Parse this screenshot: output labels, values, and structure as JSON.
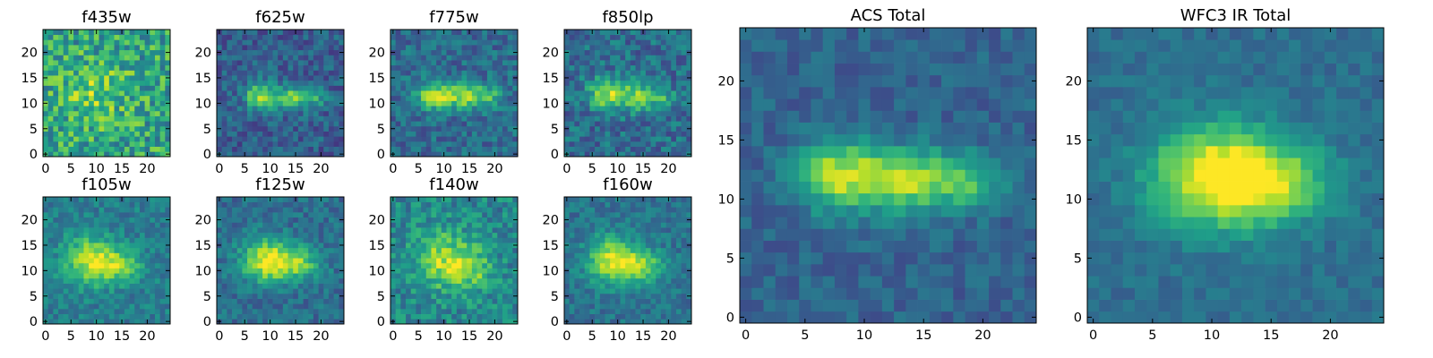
{
  "figure": {
    "colormap": "viridis",
    "colormap_stops": [
      "#440154",
      "#482878",
      "#3e4989",
      "#31688e",
      "#26828e",
      "#1f9e89",
      "#35b779",
      "#6ece58",
      "#b5de2b",
      "#fde725"
    ]
  },
  "chart_data": [
    {
      "type": "heatmap",
      "title": "f435w",
      "grid_size": 25,
      "xlim": [
        0,
        24
      ],
      "ylim": [
        0,
        24
      ],
      "xticks": [
        "0",
        "5",
        "10",
        "15",
        "20"
      ],
      "yticks": [
        "0",
        "5",
        "10",
        "15",
        "20"
      ],
      "source": {
        "amp": 0.2,
        "noise": 0.24,
        "floor": 0.58,
        "blobs": [
          [
            10,
            12,
            4.5,
            4.0,
            1.0
          ]
        ]
      }
    },
    {
      "type": "heatmap",
      "title": "f625w",
      "grid_size": 25,
      "xlim": [
        0,
        24
      ],
      "ylim": [
        0,
        24
      ],
      "xticks": [
        "0",
        "5",
        "10",
        "15",
        "20"
      ],
      "yticks": [
        "0",
        "5",
        "10",
        "15",
        "20"
      ],
      "source": {
        "amp": 0.55,
        "noise": 0.14,
        "floor": 0.3,
        "blobs": [
          [
            8,
            11.5,
            2.2,
            1.8,
            1.0
          ],
          [
            14,
            11,
            2.2,
            1.6,
            0.85
          ],
          [
            19,
            11,
            1.8,
            1.4,
            0.5
          ]
        ]
      }
    },
    {
      "type": "heatmap",
      "title": "f775w",
      "grid_size": 25,
      "xlim": [
        0,
        24
      ],
      "ylim": [
        0,
        24
      ],
      "xticks": [
        "0",
        "5",
        "10",
        "15",
        "20"
      ],
      "yticks": [
        "0",
        "5",
        "10",
        "15",
        "20"
      ],
      "source": {
        "amp": 0.55,
        "noise": 0.14,
        "floor": 0.35,
        "blobs": [
          [
            8,
            11.5,
            2.4,
            1.9,
            1.0
          ],
          [
            14,
            11.5,
            2.4,
            1.8,
            0.9
          ],
          [
            19,
            11.5,
            1.9,
            1.5,
            0.55
          ]
        ]
      }
    },
    {
      "type": "heatmap",
      "title": "f850lp",
      "grid_size": 25,
      "xlim": [
        0,
        24
      ],
      "ylim": [
        0,
        24
      ],
      "xticks": [
        "0",
        "5",
        "10",
        "15",
        "20"
      ],
      "yticks": [
        "0",
        "5",
        "10",
        "15",
        "20"
      ],
      "source": {
        "amp": 0.5,
        "noise": 0.16,
        "floor": 0.36,
        "blobs": [
          [
            8,
            12,
            2.6,
            2.2,
            1.0
          ],
          [
            14,
            11,
            2.4,
            2.0,
            0.8
          ],
          [
            19,
            11,
            1.8,
            1.4,
            0.5
          ]
        ]
      }
    },
    {
      "type": "heatmap",
      "title": "f105w",
      "grid_size": 25,
      "xlim": [
        0,
        24
      ],
      "ylim": [
        0,
        24
      ],
      "xticks": [
        "0",
        "5",
        "10",
        "15",
        "20"
      ],
      "yticks": [
        "0",
        "5",
        "10",
        "15",
        "20"
      ],
      "source": {
        "amp": 0.5,
        "noise": 0.12,
        "floor": 0.42,
        "blobs": [
          [
            9,
            12,
            3.6,
            3.3,
            1.0
          ],
          [
            15,
            11,
            3.0,
            2.2,
            0.6
          ]
        ]
      }
    },
    {
      "type": "heatmap",
      "title": "f125w",
      "grid_size": 25,
      "xlim": [
        0,
        24
      ],
      "ylim": [
        0,
        24
      ],
      "xticks": [
        "0",
        "5",
        "10",
        "15",
        "20"
      ],
      "yticks": [
        "0",
        "5",
        "10",
        "15",
        "20"
      ],
      "source": {
        "amp": 0.55,
        "noise": 0.12,
        "floor": 0.36,
        "blobs": [
          [
            9,
            12,
            3.4,
            3.0,
            1.0
          ],
          [
            15,
            11.5,
            3.4,
            2.4,
            0.75
          ]
        ]
      }
    },
    {
      "type": "heatmap",
      "title": "f140w",
      "grid_size": 25,
      "xlim": [
        0,
        24
      ],
      "ylim": [
        0,
        24
      ],
      "xticks": [
        "0",
        "5",
        "10",
        "15",
        "20"
      ],
      "yticks": [
        "0",
        "5",
        "10",
        "15",
        "20"
      ],
      "source": {
        "amp": 0.4,
        "noise": 0.16,
        "floor": 0.45,
        "blobs": [
          [
            10,
            12,
            4.0,
            4.0,
            1.0
          ],
          [
            16,
            10,
            3.0,
            3.0,
            0.6
          ]
        ]
      }
    },
    {
      "type": "heatmap",
      "title": "f160w",
      "grid_size": 25,
      "xlim": [
        0,
        24
      ],
      "ylim": [
        0,
        24
      ],
      "xticks": [
        "0",
        "5",
        "10",
        "15",
        "20"
      ],
      "yticks": [
        "0",
        "5",
        "10",
        "15",
        "20"
      ],
      "source": {
        "amp": 0.55,
        "noise": 0.11,
        "floor": 0.38,
        "blobs": [
          [
            9,
            12,
            3.4,
            3.2,
            1.0
          ],
          [
            15,
            11,
            3.0,
            2.2,
            0.7
          ]
        ]
      }
    },
    {
      "type": "heatmap",
      "title": "ACS Total",
      "grid_size": 25,
      "xlim": [
        0,
        24
      ],
      "ylim": [
        0,
        24
      ],
      "xticks": [
        "0",
        "5",
        "10",
        "15",
        "20"
      ],
      "yticks": [
        "0",
        "5",
        "10",
        "15",
        "20"
      ],
      "source": {
        "amp": 0.58,
        "noise": 0.09,
        "floor": 0.32,
        "blobs": [
          [
            8,
            12,
            2.6,
            2.0,
            1.0
          ],
          [
            14,
            11.5,
            2.6,
            1.9,
            0.9
          ],
          [
            19,
            11.5,
            2.0,
            1.6,
            0.55
          ]
        ]
      }
    },
    {
      "type": "heatmap",
      "title": "WFC3 IR Total",
      "grid_size": 25,
      "xlim": [
        0,
        24
      ],
      "ylim": [
        0,
        24
      ],
      "xticks": [
        "0",
        "5",
        "10",
        "15",
        "20"
      ],
      "yticks": [
        "0",
        "5",
        "10",
        "15",
        "20"
      ],
      "source": {
        "amp": 0.58,
        "noise": 0.07,
        "floor": 0.36,
        "blobs": [
          [
            10,
            12,
            3.8,
            3.0,
            1.0
          ],
          [
            15,
            11.5,
            3.6,
            2.4,
            0.75
          ]
        ]
      }
    }
  ]
}
